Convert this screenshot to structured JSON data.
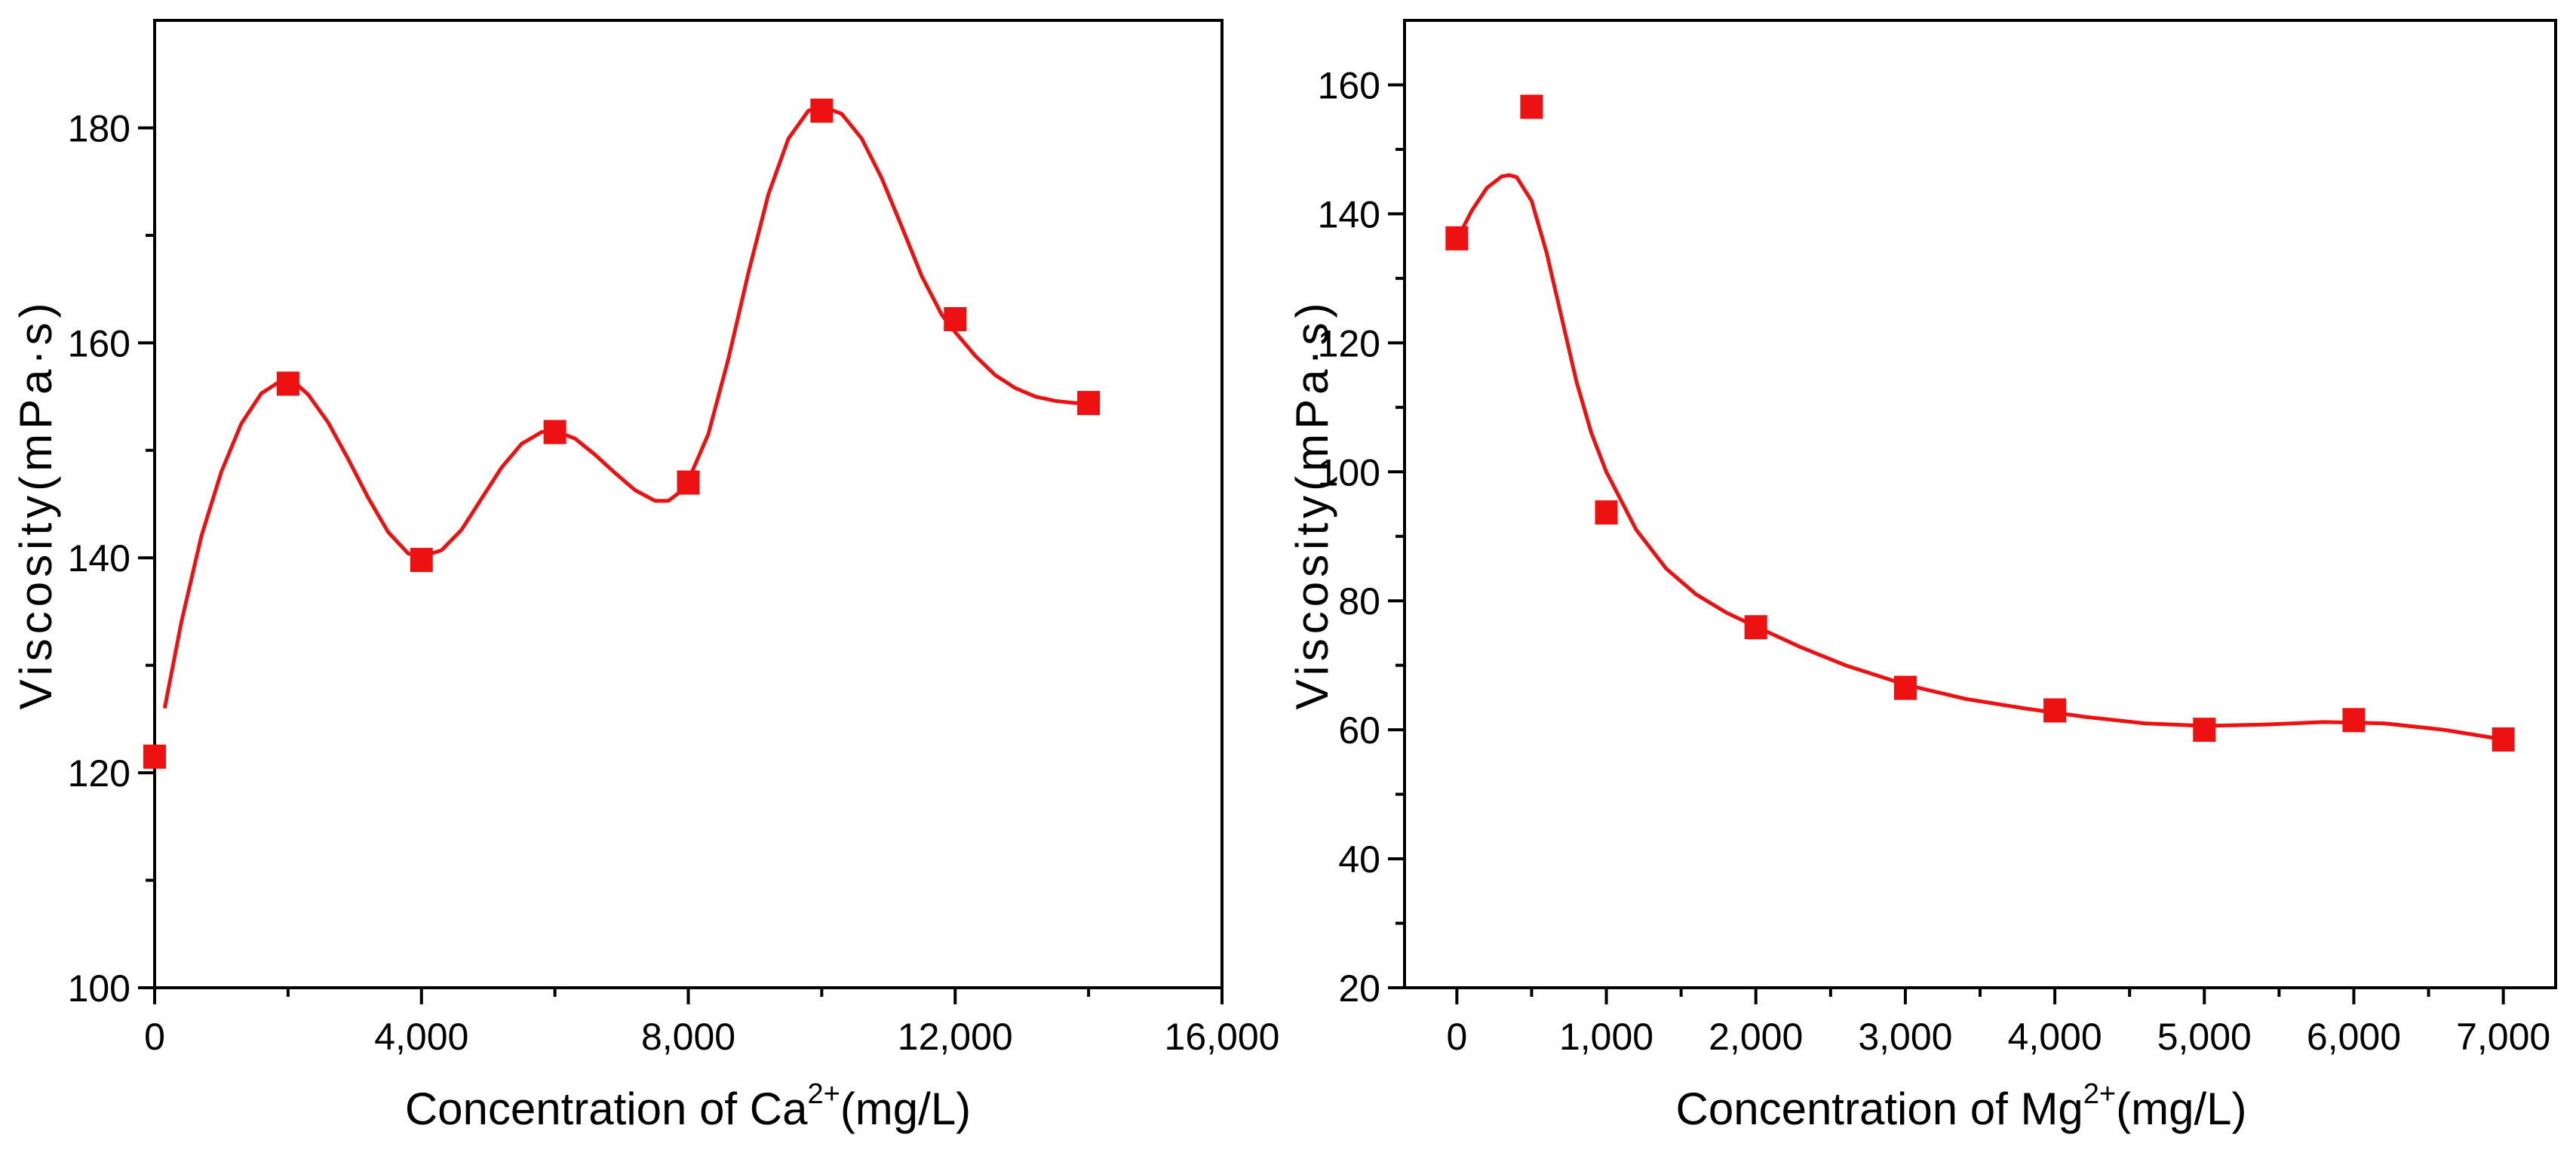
{
  "chart_data": [
    {
      "type": "scatter",
      "title": "",
      "xlabel": "Concentration of Ca2+(mg/L)",
      "xlabel_parts": {
        "prefix": "Concentration of Ca",
        "sup": "2+",
        "suffix": "(mg/L)"
      },
      "ylabel": "Viscosity(mPa·s)",
      "xlim": [
        0,
        16000
      ],
      "ylim": [
        100,
        190
      ],
      "xticks": [
        0,
        4000,
        8000,
        12000,
        16000
      ],
      "xtick_labels": [
        "0",
        "4,000",
        "8,000",
        "12,000",
        "16,000"
      ],
      "xminor": [
        2000,
        6000,
        10000,
        14000
      ],
      "yticks": [
        100,
        120,
        140,
        160,
        180
      ],
      "ytick_labels": [
        "100",
        "120",
        "140",
        "160",
        "180"
      ],
      "yminor": [
        110,
        130,
        150,
        170
      ],
      "series": [
        {
          "name": "Viscosity",
          "color": "#ee1111",
          "marker": "square",
          "x": [
            0,
            2000,
            4000,
            6000,
            8000,
            10000,
            12000,
            14000
          ],
          "y": [
            121.5,
            156.2,
            139.8,
            151.7,
            147,
            181.6,
            162.2,
            154.4
          ]
        }
      ],
      "fit_curve": {
        "color": "#ee1111",
        "x": [
          150,
          400,
          700,
          1000,
          1300,
          1600,
          1900,
          2100,
          2300,
          2600,
          2900,
          3200,
          3500,
          3800,
          4000,
          4300,
          4600,
          4900,
          5200,
          5500,
          5800,
          6000,
          6300,
          6600,
          6900,
          7200,
          7500,
          7700,
          7850,
          8000,
          8300,
          8600,
          8900,
          9200,
          9500,
          9800,
          10000,
          10300,
          10600,
          10900,
          11200,
          11500,
          11800,
          12000,
          12300,
          12600,
          12900,
          13200,
          13500,
          13800,
          14000
        ],
        "y": [
          126,
          134,
          142,
          148,
          152.5,
          155.3,
          156.5,
          156.3,
          155.2,
          152.6,
          149.2,
          145.6,
          142.4,
          140.4,
          140.1,
          140.7,
          142.6,
          145.5,
          148.4,
          150.6,
          151.7,
          151.8,
          151.1,
          149.6,
          147.9,
          146.3,
          145.3,
          145.3,
          146,
          147.2,
          151.5,
          158.5,
          166.5,
          173.8,
          179,
          181.6,
          182,
          181.3,
          179,
          175.3,
          170.8,
          166.2,
          162.6,
          161,
          158.8,
          157,
          155.8,
          155,
          154.6,
          154.4,
          154.4
        ]
      }
    },
    {
      "type": "scatter",
      "title": "",
      "xlabel": "Concentration of Mg2+(mg/L)",
      "xlabel_parts": {
        "prefix": "Concentration of Mg",
        "sup": "2+",
        "suffix": "(mg/L)"
      },
      "ylabel": "Viscosity(mPa·s)",
      "xlim": [
        -350,
        7350
      ],
      "ylim": [
        20,
        170
      ],
      "xticks": [
        0,
        1000,
        2000,
        3000,
        4000,
        5000,
        6000,
        7000
      ],
      "xtick_labels": [
        "0",
        "1,000",
        "2,000",
        "3,000",
        "4,000",
        "5,000",
        "6,000",
        "7,000"
      ],
      "xminor": [
        500,
        1500,
        2500,
        3500,
        4500,
        5500,
        6500
      ],
      "yticks": [
        20,
        40,
        60,
        80,
        100,
        120,
        140,
        160
      ],
      "ytick_labels": [
        "20",
        "40",
        "60",
        "80",
        "100",
        "120",
        "140",
        "160"
      ],
      "yminor": [
        30,
        50,
        70,
        90,
        110,
        130,
        150
      ],
      "series": [
        {
          "name": "Viscosity",
          "color": "#ee1111",
          "marker": "square",
          "x": [
            0,
            500,
            1000,
            2000,
            3000,
            4000,
            5000,
            6000,
            7000
          ],
          "y": [
            136.2,
            156.6,
            93.7,
            75.9,
            66.5,
            63,
            60,
            61.5,
            58.5
          ]
        }
      ],
      "fit_curve": {
        "color": "#ee1111",
        "x": [
          0,
          100,
          200,
          300,
          350,
          400,
          500,
          600,
          700,
          800,
          900,
          1000,
          1200,
          1400,
          1600,
          1800,
          2000,
          2300,
          2600,
          3000,
          3400,
          3800,
          4200,
          4600,
          5000,
          5400,
          5800,
          6200,
          6600,
          7000
        ],
        "y": [
          136,
          140.5,
          144,
          145.8,
          146,
          145.7,
          142,
          134,
          124,
          114,
          106,
          100,
          91,
          85,
          81,
          78.2,
          76,
          72.8,
          70,
          67,
          64.8,
          63.3,
          62,
          61,
          60.6,
          60.8,
          61.2,
          61,
          60,
          58.5
        ]
      }
    }
  ]
}
